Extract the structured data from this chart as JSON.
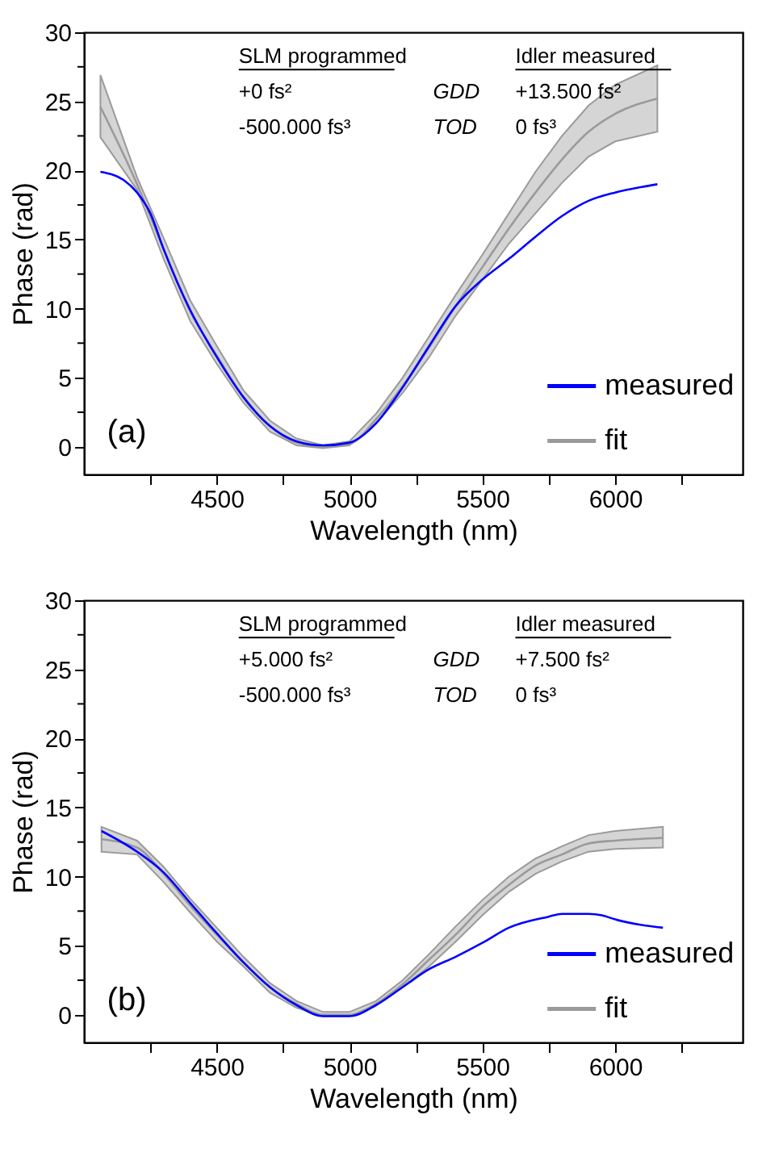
{
  "chart_data": [
    {
      "type": "line",
      "xlabel": "Wavelength (nm)",
      "ylabel": "Phase (rad)",
      "xlim": [
        4000,
        6480
      ],
      "ylim": [
        -2,
        30
      ],
      "xticks": [
        {
          "value": 4250,
          "label": null
        },
        4500,
        {
          "value": 4750,
          "label": null
        },
        5000,
        {
          "value": 5250,
          "label": null
        },
        5500,
        {
          "value": 5750,
          "label": null
        },
        6000,
        {
          "value": 6250,
          "label": null
        }
      ],
      "yticks": [
        0,
        {
          "value": 2.5,
          "label": null
        },
        5,
        {
          "value": 7.5,
          "label": null
        },
        10,
        {
          "value": 12.5,
          "label": null
        },
        15,
        {
          "value": 17.5,
          "label": null
        },
        20,
        {
          "value": 22.5,
          "label": null
        },
        25,
        {
          "value": 27.5,
          "label": null
        },
        30
      ],
      "grid": false,
      "legend": "bottom right",
      "annotations": [
        "SLM programmed",
        "+0 fs²",
        "-500.000 fs³",
        "GDD",
        "TOD",
        "Idler measured",
        "+13.500 fs²",
        "0 fs³",
        "(a)"
      ],
      "series": [
        {
          "name": "measured",
          "color": "#0000ff",
          "x": [
            4062,
            4150,
            4200,
            4250,
            4300,
            4400,
            4500,
            4600,
            4700,
            4800,
            4900,
            5000,
            5100,
            5200,
            5300,
            5400,
            5500,
            5600,
            5700,
            5800,
            5900,
            6000,
            6100,
            6159
          ],
          "values": [
            19.9,
            19.3,
            18.4,
            16.9,
            14.3,
            9.9,
            6.5,
            3.6,
            1.5,
            0.4,
            0.1,
            0.3,
            1.7,
            4.3,
            7.3,
            10.2,
            12.1,
            13.6,
            15.2,
            16.7,
            17.8,
            18.4,
            18.8,
            19.0
          ]
        },
        {
          "name": "fit",
          "color": "#9a9a9a",
          "x": [
            4062,
            4200,
            4300,
            4400,
            4500,
            4600,
            4700,
            4800,
            4900,
            5000,
            5100,
            5200,
            5300,
            5400,
            5500,
            5600,
            5700,
            5800,
            5900,
            6000,
            6159
          ],
          "values": [
            24.6,
            19.0,
            14.3,
            9.8,
            6.6,
            3.6,
            1.5,
            0.3,
            0.0,
            0.2,
            2.0,
            4.4,
            7.2,
            10.2,
            13.0,
            15.8,
            18.4,
            20.8,
            22.8,
            24.1,
            25.2
          ],
          "lower": [
            22.4,
            18.6,
            13.6,
            9.1,
            6.0,
            3.2,
            1.1,
            0.1,
            -0.1,
            0.1,
            1.7,
            3.9,
            6.5,
            9.5,
            12.1,
            14.7,
            16.9,
            19.1,
            21.0,
            22.1,
            22.8
          ],
          "upper": [
            26.9,
            19.5,
            15.1,
            10.6,
            7.3,
            4.1,
            1.9,
            0.6,
            0.1,
            0.4,
            2.4,
            5.0,
            8.0,
            11.0,
            13.9,
            16.9,
            19.9,
            22.5,
            24.7,
            26.2,
            27.6
          ]
        }
      ]
    },
    {
      "type": "line",
      "xlabel": "Wavelength (nm)",
      "ylabel": "Phase (rad)",
      "xlim": [
        4000,
        6480
      ],
      "ylim": [
        -2,
        30
      ],
      "xticks": [
        {
          "value": 4250,
          "label": null
        },
        4500,
        {
          "value": 4750,
          "label": null
        },
        5000,
        {
          "value": 5250,
          "label": null
        },
        5500,
        {
          "value": 5750,
          "label": null
        },
        6000,
        {
          "value": 6250,
          "label": null
        }
      ],
      "yticks": [
        0,
        {
          "value": 2.5,
          "label": null
        },
        5,
        {
          "value": 7.5,
          "label": null
        },
        10,
        {
          "value": 12.5,
          "label": null
        },
        15,
        {
          "value": 17.5,
          "label": null
        },
        20,
        {
          "value": 22.5,
          "label": null
        },
        25,
        {
          "value": 27.5,
          "label": null
        },
        30
      ],
      "grid": false,
      "legend": "bottom right",
      "annotations": [
        "SLM programmed",
        "+5.000 fs²",
        "-500.000 fs³",
        "GDD",
        "TOD",
        "Idler measured",
        "+7.500 fs²",
        "0 fs³",
        "(b)"
      ],
      "series": [
        {
          "name": "measured",
          "color": "#0000ff",
          "x": [
            4066,
            4200,
            4300,
            4400,
            4500,
            4600,
            4700,
            4800,
            4900,
            5000,
            5100,
            5200,
            5300,
            5400,
            5500,
            5600,
            5750,
            5800,
            5900,
            5950,
            6000,
            6100,
            6180
          ],
          "values": [
            13.3,
            11.8,
            10.3,
            8.1,
            5.9,
            3.8,
            2.0,
            0.7,
            -0.1,
            -0.1,
            0.7,
            2.0,
            3.3,
            4.2,
            5.2,
            6.3,
            7.1,
            7.3,
            7.3,
            7.2,
            6.9,
            6.5,
            6.3
          ]
        },
        {
          "name": "fit",
          "color": "#9a9a9a",
          "x": [
            4066,
            4200,
            4300,
            4400,
            4500,
            4600,
            4700,
            4800,
            4900,
            5000,
            5100,
            5200,
            5300,
            5400,
            5500,
            5600,
            5700,
            5800,
            5900,
            6000,
            6180
          ],
          "values": [
            12.7,
            12.1,
            10.2,
            7.9,
            5.8,
            3.8,
            2.0,
            0.8,
            0.0,
            0.0,
            0.8,
            2.2,
            4.0,
            5.8,
            7.8,
            9.4,
            10.8,
            11.6,
            12.4,
            12.6,
            12.8
          ],
          "lower": [
            11.8,
            11.6,
            9.6,
            7.4,
            5.3,
            3.5,
            1.6,
            0.5,
            -0.1,
            -0.1,
            0.7,
            2.0,
            3.5,
            5.3,
            7.2,
            8.9,
            10.2,
            11.1,
            11.8,
            12.0,
            12.1
          ],
          "upper": [
            13.6,
            12.6,
            10.7,
            8.4,
            6.3,
            4.2,
            2.3,
            1.0,
            0.2,
            0.2,
            1.0,
            2.5,
            4.4,
            6.4,
            8.3,
            10.0,
            11.3,
            12.2,
            13.0,
            13.3,
            13.6
          ]
        }
      ]
    }
  ]
}
